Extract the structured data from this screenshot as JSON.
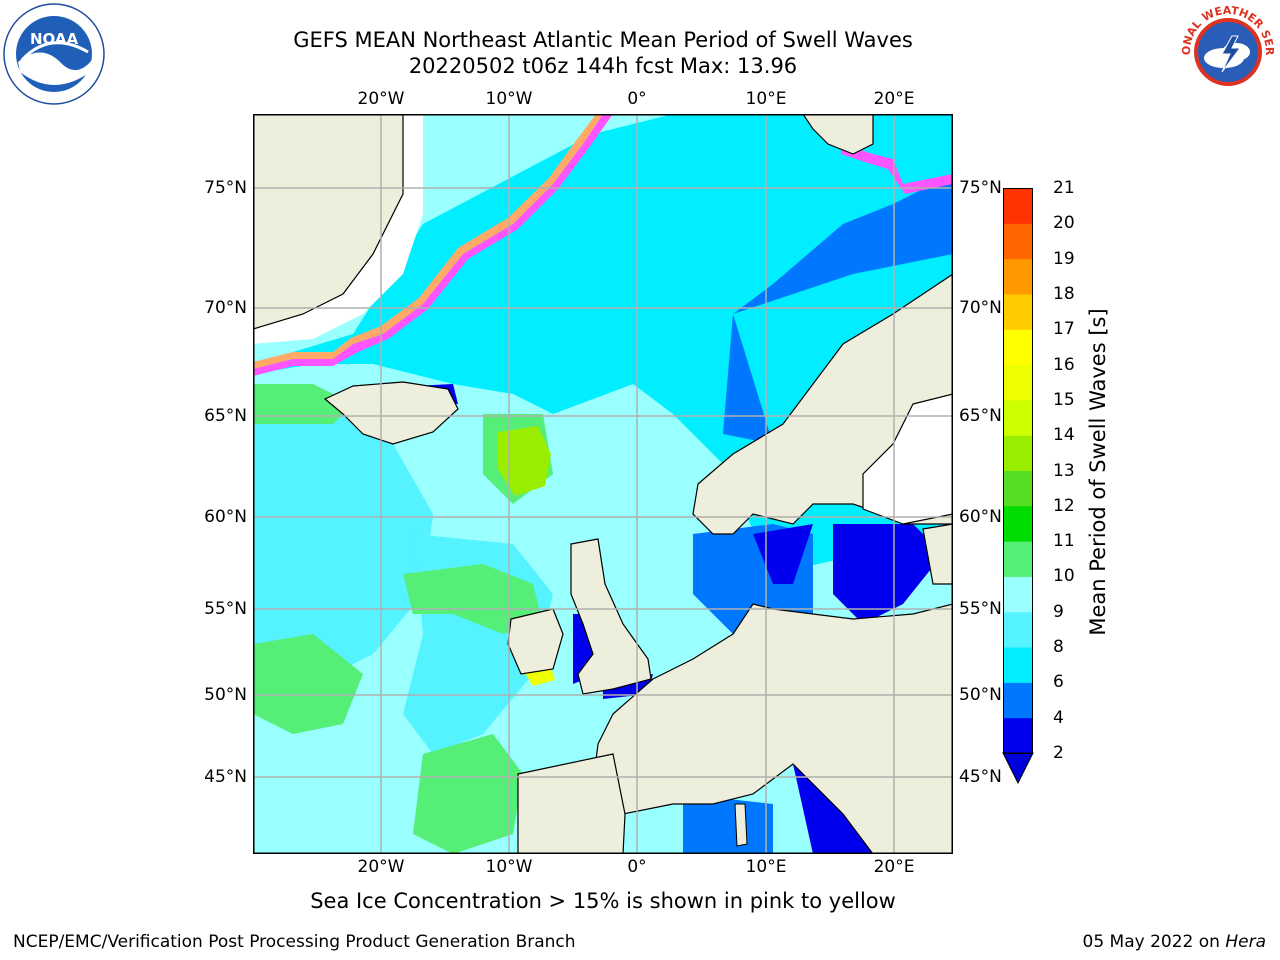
{
  "header": {
    "title_line1": "GEFS MEAN Northeast Atlantic Mean Period of Swell Waves",
    "title_line2": "20220502 t06z 144h fcst   Max: 13.96"
  },
  "logos": {
    "left": {
      "icon": "noaa-logo",
      "text": "NOAA"
    },
    "right": {
      "icon": "national-weather-service-logo",
      "text": "NATIONAL WEATHER SERVICE"
    }
  },
  "map": {
    "lon_labels": [
      "20°W",
      "10°W",
      "0°",
      "10°E",
      "20°E"
    ],
    "lat_labels": [
      "75°N",
      "70°N",
      "65°N",
      "60°N",
      "55°N",
      "50°N",
      "45°N"
    ],
    "colors": {
      "land": "#eeeedc",
      "ice_free": "#ffffff",
      "grid": "#b0b0b0",
      "coast": "#000000"
    }
  },
  "colorbar": {
    "label": "Mean Period of Swell Waves [s]",
    "ticks": [
      "2",
      "4",
      "6",
      "8",
      "9",
      "10",
      "11",
      "12",
      "13",
      "14",
      "15",
      "16",
      "17",
      "18",
      "19",
      "20",
      "21"
    ],
    "colors": [
      "#0000ee",
      "#0077ff",
      "#00eeff",
      "#55f2ff",
      "#99ffff",
      "#55ee77",
      "#00dd00",
      "#55dd22",
      "#99ee00",
      "#ccff00",
      "#eeff00",
      "#ffff00",
      "#ffcc00",
      "#ff9900",
      "#ff6600",
      "#ff3300",
      "#ff0000"
    ],
    "extend_color": "#0000dd"
  },
  "caption": "Sea Ice Concentration > 15% is shown in pink to yellow",
  "footer": {
    "left": "NCEP/EMC/Verification Post Processing Product Generation Branch",
    "right_prefix": "05 May 2022 on",
    "right_host": "Hera"
  }
}
